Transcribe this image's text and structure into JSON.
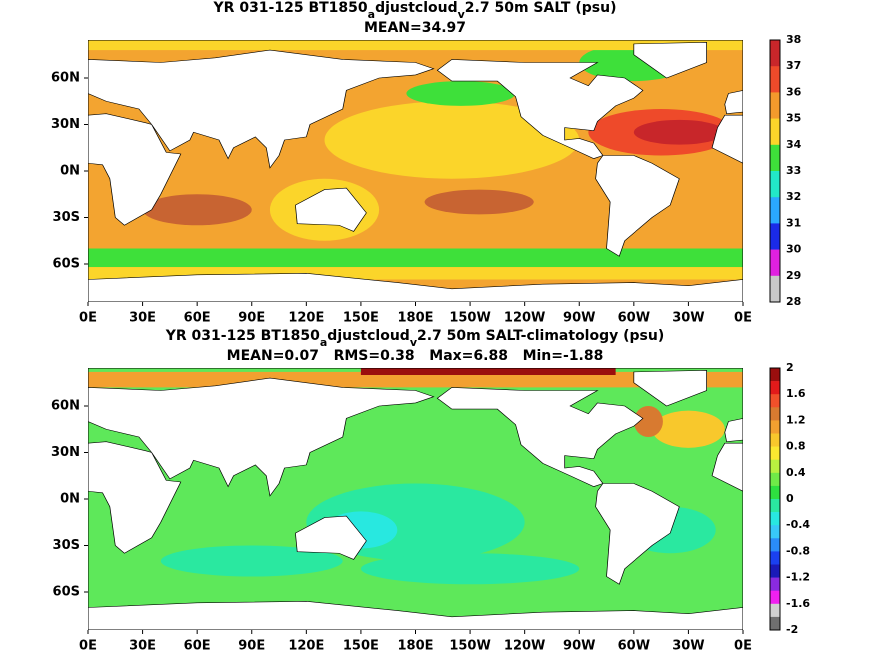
{
  "panels": [
    {
      "title_parts": [
        "YR 031-125 BT1850",
        "a",
        "djustcloud",
        "v",
        "2.7 50m SALT (psu)"
      ],
      "subtitle": "MEAN=34.97",
      "colorbar": {
        "labels": [
          "38",
          "37",
          "36",
          "35",
          "34",
          "33",
          "32",
          "31",
          "30",
          "29",
          "28"
        ],
        "colors": [
          "#c8262a",
          "#ee4a2a",
          "#f39a2c",
          "#fbd52a",
          "#3ee03a",
          "#22e8c8",
          "#2aa8ff",
          "#1a2ae8",
          "#e020e0",
          "#c8c8c8"
        ]
      }
    },
    {
      "title_parts": [
        "YR 031-125 BT1850",
        "a",
        "djustcloud",
        "v",
        "2.7 50m SALT-climatology (psu)"
      ],
      "subtitle": "MEAN=0.07   RMS=0.38   Max=6.88   Min=-1.88",
      "colorbar": {
        "labels": [
          "2",
          "1.6",
          "1.2",
          "0.8",
          "0.4",
          "0",
          "-0.4",
          "-0.8",
          "-1.2",
          "-1.6",
          "-2"
        ],
        "colors": [
          "#9a0e0e",
          "#e21a1a",
          "#f0502a",
          "#d87a30",
          "#f2a030",
          "#f8c82c",
          "#fbe830",
          "#b8f040",
          "#70ea48",
          "#2ee040",
          "#2ae8a0",
          "#28e8e0",
          "#38c8f8",
          "#2a8cf8",
          "#1a40f0",
          "#1a1ab8",
          "#8a2ae0",
          "#f020f0",
          "#d0d0d0",
          "#707070"
        ]
      }
    }
  ],
  "x_ticks": [
    "0E",
    "30E",
    "60E",
    "90E",
    "120E",
    "150E",
    "180E",
    "150W",
    "120W",
    "90W",
    "60W",
    "30W",
    "0E"
  ],
  "y_ticks": [
    "60N",
    "30N",
    "0N",
    "30S",
    "60S"
  ]
}
